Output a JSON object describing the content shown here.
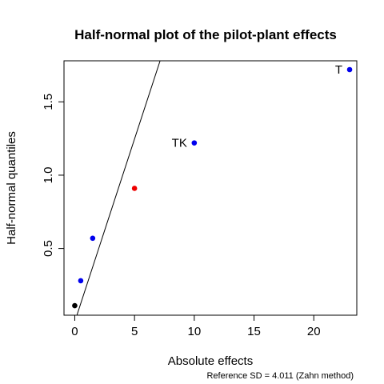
{
  "chart_data": {
    "type": "scatter",
    "title": "Half-normal plot of the pilot-plant effects",
    "xlabel": "Absolute effects",
    "ylabel": "Half-normal quantiles",
    "note": "Reference SD = 4.011 (Zahn method)",
    "xlim": [
      -0.9,
      23.6
    ],
    "ylim": [
      0.045,
      1.78
    ],
    "xticks": [
      0,
      5,
      10,
      15,
      20
    ],
    "yticks": [
      0.5,
      1.0,
      1.5
    ],
    "xtick_labels": [
      "0",
      "5",
      "10",
      "15",
      "20"
    ],
    "ytick_labels": [
      "0.5",
      "1.0",
      "1.5"
    ],
    "reference_line": {
      "slope": 0.2493,
      "intercept": 0
    },
    "points": [
      {
        "x": 0.0,
        "y": 0.11,
        "color": "#000000",
        "label": ""
      },
      {
        "x": 0.5,
        "y": 0.28,
        "color": "#0000ee",
        "label": ""
      },
      {
        "x": 1.5,
        "y": 0.57,
        "color": "#0000ee",
        "label": ""
      },
      {
        "x": 5.0,
        "y": 0.91,
        "color": "#ee0000",
        "label": ""
      },
      {
        "x": 10.0,
        "y": 1.22,
        "color": "#0000ee",
        "label": "TK"
      },
      {
        "x": 23.0,
        "y": 1.72,
        "color": "#0000ee",
        "label": "T"
      }
    ]
  }
}
